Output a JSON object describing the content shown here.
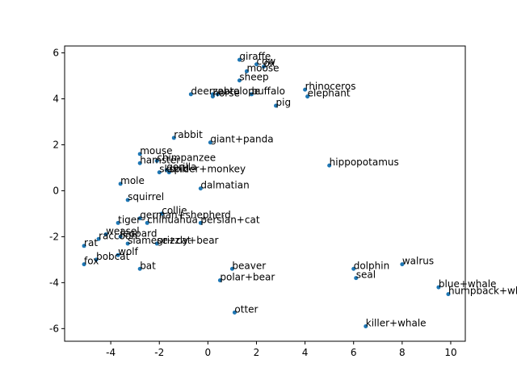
{
  "chart_data": {
    "type": "scatter",
    "title": "",
    "xlabel": "",
    "ylabel": "",
    "xlim": [
      -5.9,
      10.6
    ],
    "ylim": [
      -6.55,
      6.3
    ],
    "xticks": [
      "-4",
      "-2",
      "0",
      "2",
      "4",
      "6",
      "8",
      "10"
    ],
    "xtick_values": [
      -4,
      -2,
      0,
      2,
      4,
      6,
      8,
      10
    ],
    "yticks": [
      "-6",
      "-4",
      "-2",
      "0",
      "2",
      "4",
      "6"
    ],
    "ytick_values": [
      -6,
      -4,
      -2,
      0,
      2,
      4,
      6
    ],
    "grid": false,
    "marker_color": "#1f77b4",
    "points": [
      {
        "label": "giraffe",
        "x": 1.3,
        "y": 5.7
      },
      {
        "label": "cow",
        "x": 2.0,
        "y": 5.5
      },
      {
        "label": "ox",
        "x": 2.3,
        "y": 5.4
      },
      {
        "label": "moose",
        "x": 1.6,
        "y": 5.2
      },
      {
        "label": "sheep",
        "x": 1.3,
        "y": 4.8
      },
      {
        "label": "deer",
        "x": -0.7,
        "y": 4.2
      },
      {
        "label": "zebra",
        "x": 0.2,
        "y": 4.2
      },
      {
        "label": "horse",
        "x": 0.2,
        "y": 4.1
      },
      {
        "label": "antelope",
        "x": 0.4,
        "y": 4.2
      },
      {
        "label": "buffalo",
        "x": 1.8,
        "y": 4.2
      },
      {
        "label": "rhinoceros",
        "x": 4.0,
        "y": 4.4
      },
      {
        "label": "elephant",
        "x": 4.1,
        "y": 4.1
      },
      {
        "label": "pig",
        "x": 2.8,
        "y": 3.7
      },
      {
        "label": "rabbit",
        "x": -1.4,
        "y": 2.3
      },
      {
        "label": "giant+panda",
        "x": 0.1,
        "y": 2.1
      },
      {
        "label": "mouse",
        "x": -2.8,
        "y": 1.6
      },
      {
        "label": "hamster",
        "x": -2.8,
        "y": 1.2
      },
      {
        "label": "chimpanzee",
        "x": -2.1,
        "y": 1.3
      },
      {
        "label": "gorilla",
        "x": -1.7,
        "y": 0.9
      },
      {
        "label": "skunk",
        "x": -2.0,
        "y": 0.8
      },
      {
        "label": "spider+monkey",
        "x": -1.6,
        "y": 0.8
      },
      {
        "label": "hippopotamus",
        "x": 5.0,
        "y": 1.1
      },
      {
        "label": "mole",
        "x": -3.6,
        "y": 0.3
      },
      {
        "label": "dalmatian",
        "x": -0.3,
        "y": 0.1
      },
      {
        "label": "squirrel",
        "x": -3.3,
        "y": -0.4
      },
      {
        "label": "collie",
        "x": -1.9,
        "y": -1.0
      },
      {
        "label": "german+shepherd",
        "x": -2.8,
        "y": -1.2
      },
      {
        "label": "chihuahua",
        "x": -2.5,
        "y": -1.4
      },
      {
        "label": "persian+cat",
        "x": -0.3,
        "y": -1.4
      },
      {
        "label": "tiger",
        "x": -3.7,
        "y": -1.4
      },
      {
        "label": "weasel",
        "x": -4.2,
        "y": -1.9
      },
      {
        "label": "leopard",
        "x": -3.6,
        "y": -2.0
      },
      {
        "label": "raccoon",
        "x": -4.5,
        "y": -2.1
      },
      {
        "label": "siamese+cat",
        "x": -3.3,
        "y": -2.3
      },
      {
        "label": "grizzly+bear",
        "x": -2.1,
        "y": -2.3
      },
      {
        "label": "rat",
        "x": -5.1,
        "y": -2.4
      },
      {
        "label": "wolf",
        "x": -3.7,
        "y": -2.8
      },
      {
        "label": "bobcat",
        "x": -4.6,
        "y": -3.0
      },
      {
        "label": "fox",
        "x": -5.1,
        "y": -3.2
      },
      {
        "label": "bat",
        "x": -2.8,
        "y": -3.4
      },
      {
        "label": "beaver",
        "x": 1.0,
        "y": -3.4
      },
      {
        "label": "polar+bear",
        "x": 0.5,
        "y": -3.9
      },
      {
        "label": "dolphin",
        "x": 6.0,
        "y": -3.4
      },
      {
        "label": "walrus",
        "x": 8.0,
        "y": -3.2
      },
      {
        "label": "seal",
        "x": 6.1,
        "y": -3.8
      },
      {
        "label": "blue+whale",
        "x": 9.5,
        "y": -4.2
      },
      {
        "label": "humpback+whale",
        "x": 9.9,
        "y": -4.5
      },
      {
        "label": "otter",
        "x": 1.1,
        "y": -5.3
      },
      {
        "label": "killer+whale",
        "x": 6.5,
        "y": -5.9
      }
    ]
  }
}
